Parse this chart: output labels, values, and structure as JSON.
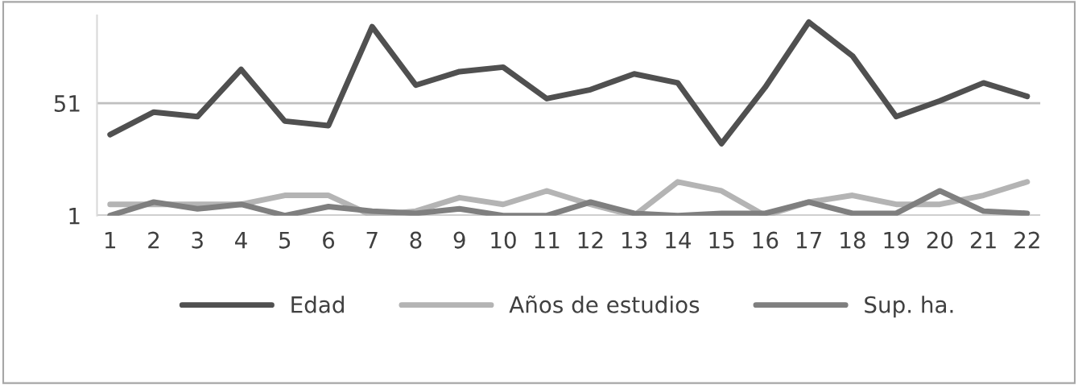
{
  "chart_data": {
    "type": "line",
    "categories": [
      "1",
      "2",
      "3",
      "4",
      "5",
      "6",
      "7",
      "8",
      "9",
      "10",
      "11",
      "12",
      "13",
      "14",
      "15",
      "16",
      "17",
      "18",
      "19",
      "20",
      "21",
      "22"
    ],
    "series": [
      {
        "name": "Edad",
        "color": "#505050",
        "values": [
          37,
          47,
          45,
          66,
          43,
          41,
          85,
          59,
          65,
          67,
          53,
          57,
          64,
          60,
          33,
          58,
          87,
          72,
          45,
          52,
          60,
          54
        ]
      },
      {
        "name": "Años de estudios",
        "color": "#b4b4b4",
        "values": [
          6,
          6,
          6,
          6,
          10,
          10,
          1,
          3,
          9,
          6,
          12,
          6,
          1,
          16,
          12,
          1,
          7,
          10,
          6,
          6,
          10,
          16
        ]
      },
      {
        "name": "Sup. ha.",
        "color": "#7f7f7f",
        "values": [
          1,
          7,
          4,
          6,
          1,
          5,
          3,
          2,
          4,
          1,
          1,
          7,
          2,
          1,
          2,
          2,
          7,
          2,
          2,
          12,
          3,
          2
        ]
      }
    ],
    "ylim": [
      1,
      90
    ],
    "yticks": [
      1,
      51
    ],
    "grid": "y",
    "legend": "bottom",
    "line_style": "solid",
    "marker": "none"
  }
}
